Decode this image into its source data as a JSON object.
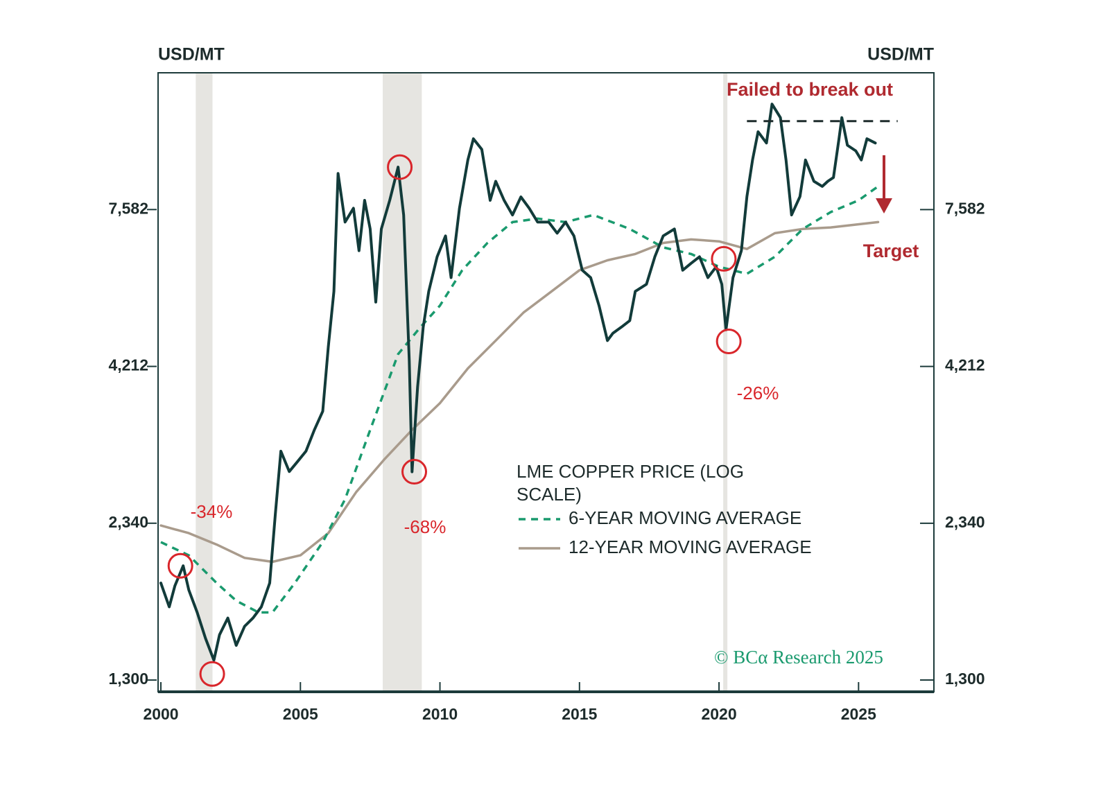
{
  "chart_data": {
    "type": "line",
    "y_label": "USD/MT",
    "y2_label": "USD/MT",
    "log_scale": true,
    "xlim": [
      1999.9,
      2027.7
    ],
    "xticks": [
      2000,
      2005,
      2010,
      2015,
      2020,
      2025
    ],
    "ylim": [
      1244,
      12660
    ],
    "yticks": [
      {
        "value": 1300,
        "label": "1,300"
      },
      {
        "value": 2340,
        "label": "2,340"
      },
      {
        "value": 4212,
        "label": "4,212"
      },
      {
        "value": 7582,
        "label": "7,582"
      }
    ],
    "y2lim": [
      1244,
      12660
    ],
    "y2ticks": [
      {
        "value": 1300,
        "label": "1,300"
      },
      {
        "value": 2340,
        "label": "2,340"
      },
      {
        "value": 4212,
        "label": "4,212"
      },
      {
        "value": 7582,
        "label": "7,582"
      }
    ],
    "grid": false,
    "series": [
      {
        "name": "LME COPPER PRICE (LOG SCALE)",
        "color": "#123b3a",
        "dashed": false,
        "x": [
          2000.0,
          2000.3,
          2000.5,
          2000.8,
          2001.0,
          2001.3,
          2001.6,
          2001.9,
          2002.1,
          2002.4,
          2002.7,
          2003.0,
          2003.3,
          2003.6,
          2003.9,
          2004.1,
          2004.3,
          2004.6,
          2004.9,
          2005.2,
          2005.5,
          2005.8,
          2006.0,
          2006.2,
          2006.35,
          2006.6,
          2006.9,
          2007.1,
          2007.3,
          2007.5,
          2007.7,
          2007.9,
          2008.2,
          2008.5,
          2008.7,
          2008.9,
          2009.0,
          2009.2,
          2009.4,
          2009.6,
          2009.9,
          2010.2,
          2010.4,
          2010.7,
          2011.0,
          2011.2,
          2011.5,
          2011.8,
          2012.0,
          2012.3,
          2012.6,
          2012.9,
          2013.2,
          2013.5,
          2013.9,
          2014.2,
          2014.5,
          2014.8,
          2015.1,
          2015.4,
          2015.7,
          2016.0,
          2016.2,
          2016.5,
          2016.8,
          2017.0,
          2017.4,
          2017.7,
          2018.0,
          2018.4,
          2018.7,
          2019.0,
          2019.3,
          2019.6,
          2019.9,
          2020.1,
          2020.25,
          2020.5,
          2020.8,
          2021.0,
          2021.2,
          2021.4,
          2021.7,
          2021.9,
          2022.2,
          2022.4,
          2022.6,
          2022.9,
          2023.1,
          2023.4,
          2023.7,
          2023.9,
          2024.1,
          2024.3,
          2024.4,
          2024.6,
          2024.9,
          2025.1,
          2025.3,
          2025.6
        ],
        "values": [
          1870,
          1710,
          1850,
          1995,
          1822,
          1675,
          1520,
          1400,
          1540,
          1640,
          1480,
          1590,
          1640,
          1710,
          1870,
          2420,
          3065,
          2840,
          2950,
          3065,
          3320,
          3560,
          4530,
          5580,
          8680,
          7235,
          7620,
          6500,
          7850,
          7050,
          5360,
          7050,
          7850,
          8890,
          7430,
          4300,
          2838,
          3900,
          4880,
          5580,
          6353,
          6870,
          5875,
          7620,
          9130,
          9885,
          9500,
          7850,
          8430,
          7850,
          7430,
          7950,
          7620,
          7235,
          7235,
          6940,
          7235,
          6870,
          6040,
          5875,
          5290,
          4640,
          4771,
          4880,
          5000,
          5580,
          5730,
          6353,
          6870,
          7050,
          6040,
          6200,
          6353,
          5875,
          6120,
          5730,
          4832,
          5875,
          6500,
          7960,
          9130,
          10150,
          9730,
          11258,
          10700,
          9130,
          7430,
          7960,
          9130,
          8430,
          8270,
          8430,
          8550,
          9885,
          10700,
          9650,
          9450,
          9130,
          9885,
          9730
        ]
      },
      {
        "name": "6-YEAR MOVING AVERAGE",
        "color": "#1a9a6e",
        "dashed": true,
        "x": [
          2000.0,
          2001.0,
          2002.0,
          2002.7,
          2003.5,
          2004.0,
          2004.8,
          2005.8,
          2006.6,
          2007.5,
          2008.5,
          2009.3,
          2010.0,
          2010.8,
          2011.7,
          2012.6,
          2013.5,
          2014.5,
          2015.5,
          2016.8,
          2018.0,
          2019.0,
          2020.0,
          2021.0,
          2022.0,
          2023.0,
          2024.0,
          2025.0,
          2025.7
        ],
        "values": [
          2180,
          2075,
          1870,
          1750,
          1675,
          1675,
          1870,
          2180,
          2560,
          3320,
          4410,
          4880,
          5290,
          6040,
          6690,
          7235,
          7330,
          7235,
          7430,
          7050,
          6580,
          6420,
          6120,
          5960,
          6353,
          7050,
          7510,
          7850,
          8270
        ]
      },
      {
        "name": "12-YEAR MOVING AVERAGE",
        "color": "#a99b8c",
        "dashed": false,
        "x": [
          2000.0,
          2001.0,
          2002.0,
          2003.0,
          2004.0,
          2005.0,
          2006.0,
          2007.0,
          2008.0,
          2009.0,
          2010.0,
          2011.0,
          2012.0,
          2013.0,
          2014.0,
          2015.0,
          2016.0,
          2017.0,
          2018.0,
          2019.0,
          2020.0,
          2021.0,
          2022.0,
          2023.0,
          2024.0,
          2025.7
        ],
        "values": [
          2320,
          2255,
          2160,
          2055,
          2025,
          2075,
          2255,
          2630,
          2970,
          3320,
          3670,
          4180,
          4640,
          5157,
          5580,
          6040,
          6270,
          6420,
          6690,
          6780,
          6730,
          6540,
          6940,
          7050,
          7090,
          7235
        ]
      }
    ],
    "shaded_periods": [
      [
        2001.25,
        2001.85
      ],
      [
        2007.95,
        2009.35
      ],
      [
        2020.15,
        2020.3
      ]
    ],
    "highlights": [
      {
        "x": 2000.7,
        "y": 1995
      },
      {
        "x": 2001.84,
        "y": 1330
      },
      {
        "x": 2008.56,
        "y": 8890
      },
      {
        "x": 2009.08,
        "y": 2838
      },
      {
        "x": 2020.17,
        "y": 6304
      },
      {
        "x": 2020.35,
        "y": 4626
      }
    ],
    "annotations": [
      {
        "text": "-34%"
      },
      {
        "text": "-68%"
      },
      {
        "text": "-26%"
      }
    ],
    "resistance": {
      "label": "Failed to break out",
      "value": 10563,
      "x": [
        2021.0,
        2026.4
      ]
    },
    "target_label": "Target",
    "source": "© BCα Research 2025"
  }
}
